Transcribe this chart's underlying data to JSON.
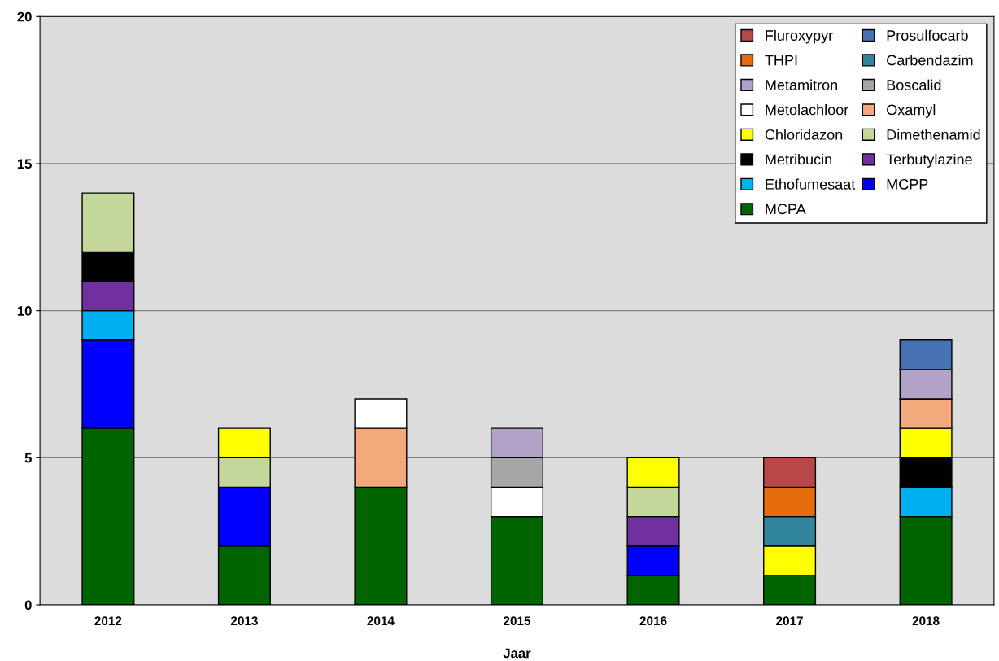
{
  "chart_data": {
    "type": "bar",
    "stacked": true,
    "xlabel": "Jaar",
    "categories": [
      "2012",
      "2013",
      "2014",
      "2015",
      "2016",
      "2017",
      "2018"
    ],
    "ylim": [
      0,
      20
    ],
    "yticks": [
      0,
      5,
      10,
      15,
      20
    ],
    "grid": "y",
    "legend": "top right",
    "series": [
      {
        "name": "MCPA",
        "color": "#006400",
        "values": [
          6,
          2,
          4,
          3,
          1,
          1,
          3
        ]
      },
      {
        "name": "MCPP",
        "color": "#0000ff",
        "values": [
          3,
          2,
          null,
          null,
          1,
          null,
          null
        ]
      },
      {
        "name": "Ethofumesaat",
        "color": "#00b0f0",
        "values": [
          1,
          null,
          null,
          null,
          null,
          null,
          1
        ]
      },
      {
        "name": "Terbutylazine",
        "color": "#7030a0",
        "values": [
          1,
          null,
          null,
          null,
          1,
          null,
          null
        ]
      },
      {
        "name": "Metribucin",
        "color": "#000000",
        "values": [
          1,
          null,
          null,
          null,
          null,
          null,
          1
        ]
      },
      {
        "name": "Dimethenamid",
        "color": "#c4d79b",
        "values": [
          2,
          1,
          null,
          null,
          1,
          null,
          null
        ]
      },
      {
        "name": "Chloridazon",
        "color": "#ffff00",
        "values": [
          null,
          1,
          null,
          null,
          1,
          1,
          1
        ]
      },
      {
        "name": "Oxamyl",
        "color": "#f4a97c",
        "values": [
          null,
          null,
          2,
          null,
          null,
          null,
          1
        ]
      },
      {
        "name": "Metolachloor",
        "color": "#ffffff",
        "values": [
          null,
          null,
          1,
          1,
          null,
          null,
          null
        ]
      },
      {
        "name": "Boscalid",
        "color": "#a6a6a6",
        "values": [
          null,
          null,
          null,
          1,
          null,
          null,
          null
        ]
      },
      {
        "name": "Metamitron",
        "color": "#b3a2c7",
        "values": [
          null,
          null,
          null,
          1,
          null,
          null,
          1
        ]
      },
      {
        "name": "Carbendazim",
        "color": "#31859c",
        "values": [
          null,
          null,
          null,
          null,
          null,
          1,
          null
        ]
      },
      {
        "name": "THPI",
        "color": "#e46c0a",
        "values": [
          null,
          null,
          null,
          null,
          null,
          1,
          null
        ]
      },
      {
        "name": "Prosulfocarb",
        "color": "#4672b4",
        "values": [
          null,
          null,
          null,
          null,
          null,
          null,
          1
        ]
      },
      {
        "name": "Fluroxypyr",
        "color": "#b84848",
        "values": [
          null,
          null,
          null,
          null,
          null,
          1,
          null
        ]
      }
    ]
  }
}
